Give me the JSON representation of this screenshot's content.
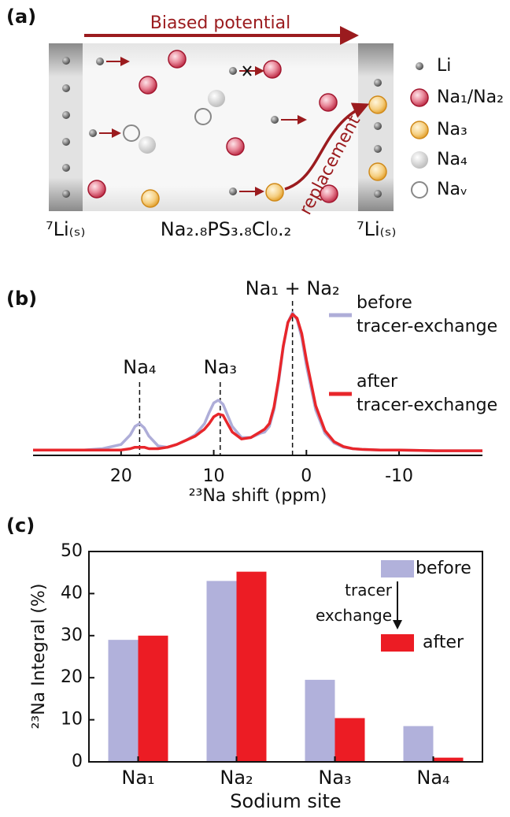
{
  "panel_labels": [
    "(a)",
    "(b)",
    "(c)"
  ],
  "diagram": {
    "arrow_label": "Biased potential",
    "legend": [
      "Li",
      "Na₁/Na₂",
      "Na₃",
      "Na₄",
      "Naᵥ"
    ],
    "replacement_label": "replacement",
    "left_electrode": "⁷Li₍ₛ₎",
    "right_electrode": "⁷Li₍ₛ₎",
    "electrolyte": "Na₂.₈PS₃.₈Cl₀.₂"
  },
  "chart_data": [
    {
      "type": "line",
      "xlabel": "²³Na shift (ppm)",
      "x": [
        29.5,
        28,
        26,
        24,
        22,
        20,
        19,
        18.5,
        18,
        17.5,
        17,
        16,
        15,
        14,
        13,
        12,
        11,
        10.5,
        10,
        9.5,
        9,
        8.5,
        8,
        7,
        6,
        5,
        4.5,
        4,
        3.5,
        3,
        2.5,
        2,
        1.5,
        1,
        0.5,
        0,
        -1,
        -2,
        -3,
        -4,
        -5,
        -6,
        -8,
        -10,
        -14,
        -19
      ],
      "series": [
        {
          "name": "before tracer-exchange",
          "color": "#aeadd8",
          "values": [
            0.01,
            0.01,
            0.01,
            0.01,
            0.02,
            0.05,
            0.12,
            0.18,
            0.2,
            0.17,
            0.11,
            0.04,
            0.03,
            0.05,
            0.08,
            0.12,
            0.2,
            0.28,
            0.35,
            0.37,
            0.34,
            0.26,
            0.18,
            0.1,
            0.1,
            0.13,
            0.14,
            0.18,
            0.3,
            0.5,
            0.75,
            0.93,
            1.0,
            0.95,
            0.82,
            0.62,
            0.3,
            0.13,
            0.06,
            0.03,
            0.02,
            0.015,
            0.01,
            0.01,
            0.005,
            0.005
          ]
        },
        {
          "name": "after tracer-exchange",
          "color": "#e8262b",
          "values": [
            0.01,
            0.01,
            0.01,
            0.01,
            0.01,
            0.01,
            0.02,
            0.03,
            0.03,
            0.03,
            0.02,
            0.02,
            0.03,
            0.05,
            0.08,
            0.11,
            0.16,
            0.2,
            0.25,
            0.27,
            0.26,
            0.2,
            0.14,
            0.09,
            0.1,
            0.14,
            0.16,
            0.2,
            0.32,
            0.52,
            0.76,
            0.93,
            0.99,
            0.96,
            0.85,
            0.66,
            0.33,
            0.15,
            0.07,
            0.035,
            0.02,
            0.015,
            0.01,
            0.01,
            0.005,
            0.005
          ]
        }
      ],
      "xlim": [
        29.5,
        -19
      ],
      "xticks": [
        20,
        10,
        0,
        -10
      ],
      "ylim": [
        0,
        1
      ],
      "legend": "upper right",
      "annotations": [
        {
          "text": "Na₄",
          "x": 18
        },
        {
          "text": "Na₃",
          "x": 9.3
        },
        {
          "text": "Na₁ + Na₂",
          "x": 1.5
        }
      ]
    },
    {
      "type": "bar",
      "xlabel": "Sodium site",
      "ylabel": "²³Na Integral (%)",
      "categories": [
        "Na₁",
        "Na₂",
        "Na₃",
        "Na₄"
      ],
      "series": [
        {
          "name": "before",
          "color": "#b1b1db",
          "values": [
            29,
            43,
            19.5,
            8.5
          ]
        },
        {
          "name": "after",
          "color": "#ec1c24",
          "values": [
            30,
            45.2,
            10.4,
            1
          ]
        }
      ],
      "ylim": [
        0,
        50
      ],
      "yticks": [
        0,
        10,
        20,
        30,
        40,
        50
      ],
      "legend": "upper right",
      "annotation": "tracer exchange"
    }
  ]
}
